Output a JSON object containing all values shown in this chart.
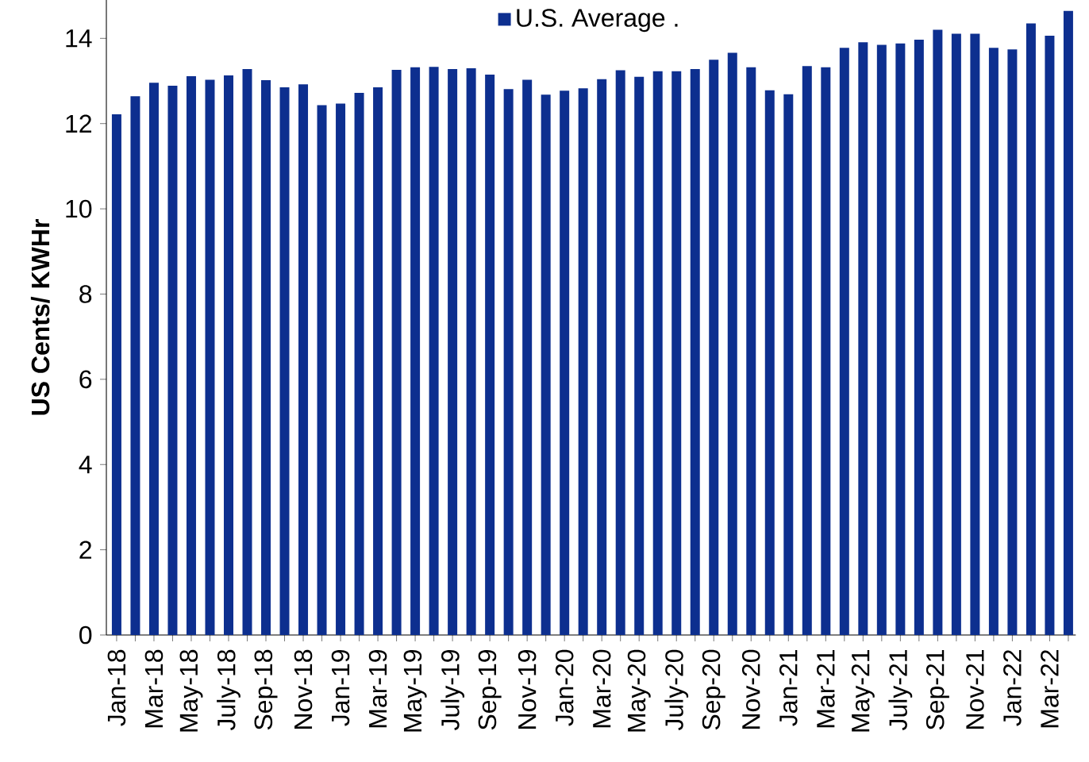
{
  "chart_data": {
    "type": "bar",
    "ylabel": "US Cents/ KWHr",
    "categories": [
      "Jan-18",
      null,
      "Mar-18",
      null,
      "May-18",
      null,
      "July-18",
      null,
      "Sep-18",
      null,
      "Nov-18",
      null,
      "Jan-19",
      null,
      "Mar-19",
      null,
      "May-19",
      null,
      "July-19",
      null,
      "Sep-19",
      null,
      "Nov-19",
      null,
      "Jan-20",
      null,
      "Mar-20",
      null,
      "May-20",
      null,
      "July-20",
      null,
      "Sep-20",
      null,
      "Nov-20",
      null,
      "Jan-21",
      null,
      "Mar-21",
      null,
      "May-21",
      null,
      "July-21",
      null,
      "Sep-21",
      null,
      "Nov-21",
      null,
      "Jan-22",
      null,
      "Mar-22",
      null
    ],
    "series": [
      {
        "name": "U.S. Average .",
        "color": "#0d2f8f",
        "values": [
          12.22,
          12.64,
          12.96,
          12.89,
          13.11,
          13.03,
          13.13,
          13.28,
          13.02,
          12.85,
          12.92,
          12.43,
          12.47,
          12.72,
          12.85,
          13.26,
          13.32,
          13.33,
          13.28,
          13.3,
          13.15,
          12.81,
          13.03,
          12.68,
          12.77,
          12.83,
          13.04,
          13.25,
          13.1,
          13.23,
          13.23,
          13.28,
          13.5,
          13.66,
          13.32,
          12.78,
          12.69,
          13.35,
          13.32,
          13.78,
          13.91,
          13.85,
          13.88,
          13.97,
          14.2,
          14.11,
          14.11,
          13.78,
          13.74,
          14.35,
          14.06,
          14.65
        ]
      }
    ],
    "ylim": [
      0,
      14.9
    ],
    "yticks": [
      0,
      2,
      4,
      6,
      8,
      10,
      12,
      14
    ],
    "legend": "top",
    "marker": "square"
  }
}
